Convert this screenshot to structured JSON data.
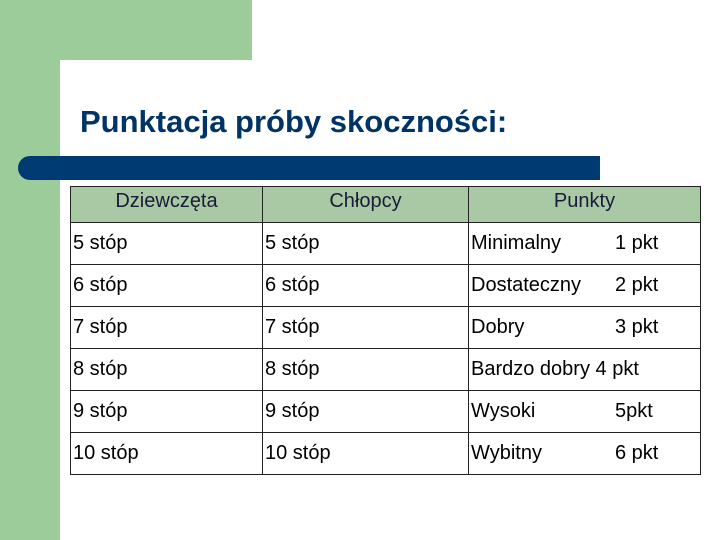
{
  "slide": {
    "title": "Punktacja próby skoczności:"
  },
  "table": {
    "headers": [
      "Dziewczęta",
      "Chłopcy",
      "Punkty"
    ],
    "rows": [
      {
        "girls": "5 stóp",
        "boys": "5 stóp",
        "level": "Minimalny",
        "points": "1 pkt"
      },
      {
        "girls": "6 stóp",
        "boys": "6 stóp",
        "level": "Dostateczny",
        "points": "2 pkt"
      },
      {
        "girls": "7 stóp",
        "boys": "7 stóp",
        "level": "Dobry",
        "points": "3 pkt"
      },
      {
        "girls": "8 stóp",
        "boys": "8 stóp",
        "level": "Bardzo dobry",
        "points": "4 pkt"
      },
      {
        "girls": "9 stóp",
        "boys": "9 stóp",
        "level": "Wysoki",
        "points": "5pkt"
      },
      {
        "girls": "10 stóp",
        "boys": "10 stóp",
        "level": "Wybitny",
        "points": "6 pkt"
      }
    ]
  },
  "colors": {
    "accent_green": "#9ccc9a",
    "title_blue": "#003366",
    "rule_blue": "#003a73",
    "header_green": "#a8c9a4"
  }
}
